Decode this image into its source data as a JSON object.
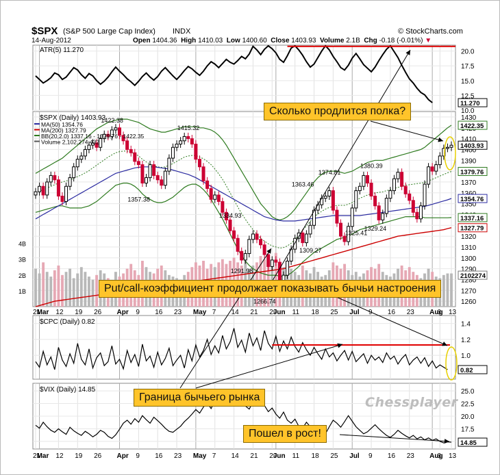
{
  "header": {
    "symbol": "$SPX",
    "name": "(S&P 500 Large Cap Index)",
    "exchange": "INDX",
    "date": "14-Aug-2012",
    "open_label": "Open",
    "open": "1404.36",
    "high_label": "High",
    "high": "1410.03",
    "low_label": "Low",
    "low": "1400.60",
    "close_label": "Close",
    "close": "1403.93",
    "volume_label": "Volume",
    "volume": "2.1B",
    "chg_label": "Chg",
    "chg": "-0.18 (-0.01%)",
    "brand": "© StockCharts.com"
  },
  "panels": {
    "atr": {
      "label": "ATR(5) 11.270",
      "last": "11.270"
    },
    "price": {
      "label": "$SPX (Daily) 1403.93",
      "legend": [
        "MA(50) 1354.76",
        "MA(200) 1327.79",
        "BB(20,2.0) 1337.16 - 1379.76 - 1422.35",
        "Volume 2,102,274,432"
      ],
      "right_tags": [
        "1422.35",
        "1403.93",
        "1379.76",
        "1354.76",
        "1337.16",
        "1327.79",
        "2102274"
      ],
      "annotations": [
        "1422.38",
        "1415.32",
        "1357.38",
        "1334.93",
        "1291.98",
        "1266.74",
        "1363.46",
        "1374.81",
        "1380.39",
        "1309.27",
        "1325.41",
        "1329.24"
      ],
      "volume_ticks": [
        "4B",
        "3B",
        "2B",
        "1B"
      ]
    },
    "cpc": {
      "label": "$CPC (Daily) 0.82",
      "last": "0.82"
    },
    "vix": {
      "label": "$VIX (Daily) 14.85",
      "last": "14.85"
    }
  },
  "x_axis": {
    "labels": [
      "21",
      "Mar",
      "12",
      "19",
      "26",
      "Apr",
      "9",
      "16",
      "23",
      "May",
      "7",
      "14",
      "21",
      "29",
      "Jun",
      "11",
      "18",
      "25",
      "Jul",
      "9",
      "16",
      "23",
      "Aug",
      "6",
      "13"
    ]
  },
  "callouts": {
    "shelf": "Сколько продлится полка?",
    "putcall": "Put/call-коэффициент продолжает показывать бычьи настроения",
    "bull": "Граница бычьего рынка",
    "rise": "Пошел в рост!"
  },
  "watermark": "Chessplayer",
  "colors": {
    "up": "#000000",
    "down": "#cc0033",
    "ma50": "#2a2aa0",
    "ma200": "#cc0000",
    "bb": "#2d7a1e",
    "volume": "#b0b0b0",
    "callout": "#ffc42a",
    "resistance": "#e00000"
  },
  "chart_data": [
    {
      "type": "line",
      "title": "ATR(5) 11.270",
      "ylim": [
        10,
        21
      ],
      "y_ticks": [
        "20.0",
        "17.5",
        "15.0",
        "12.5",
        "10.0"
      ],
      "values": [
        15.8,
        15.2,
        14.6,
        15.0,
        15.5,
        16.3,
        16.0,
        15.2,
        15.6,
        16.4,
        17.2,
        16.8,
        16.0,
        15.4,
        16.2,
        15.8,
        15.0,
        14.4,
        14.9,
        15.6,
        16.5,
        17.3,
        16.6,
        16.0,
        15.3,
        14.8,
        14.2,
        14.9,
        15.7,
        16.3,
        15.6,
        15.1,
        15.7,
        16.6,
        17.2,
        16.5,
        15.8,
        15.2,
        15.9,
        16.7,
        17.4,
        17.0,
        16.4,
        15.9,
        16.6,
        17.5,
        18.2,
        17.8,
        17.2,
        17.9,
        18.6,
        18.1,
        17.8,
        18.4,
        19.1,
        18.7,
        19.5,
        20.8,
        20.2,
        19.4,
        20.3,
        20.9,
        20.4,
        19.7,
        18.6,
        18.1,
        19.2,
        20.5,
        20.9,
        20.2,
        19.3,
        18.2,
        17.3,
        17.8,
        18.9,
        20.0,
        20.9,
        20.2,
        19.1,
        18.2,
        17.2,
        16.8,
        17.6,
        18.8,
        19.6,
        18.7,
        17.7,
        17.1,
        16.5,
        17.3,
        18.4,
        19.4,
        20.3,
        20.9,
        19.9,
        18.9,
        17.6,
        16.4,
        15.3,
        14.6,
        13.7,
        13.0,
        12.6,
        11.8,
        11.27
      ]
    },
    {
      "type": "bar",
      "subtype": "candlestick",
      "title": "$SPX (Daily) 1403.93",
      "ylim": [
        1255,
        1435
      ],
      "y_ticks": [
        "1430",
        "1420",
        "1410",
        "1400",
        "1390",
        "1380",
        "1370",
        "1360",
        "1350",
        "1340",
        "1330",
        "1320",
        "1310",
        "1300",
        "1290",
        "1280",
        "1270",
        "1260"
      ],
      "close": [
        1361,
        1366,
        1358,
        1370,
        1376,
        1372,
        1357,
        1352,
        1366,
        1374,
        1384,
        1391,
        1394,
        1400,
        1404,
        1406,
        1402,
        1410,
        1414,
        1412,
        1418,
        1420,
        1413,
        1408,
        1400,
        1397,
        1389,
        1386,
        1369,
        1374,
        1386,
        1376,
        1372,
        1367,
        1380,
        1392,
        1402,
        1405,
        1408,
        1412,
        1410,
        1405,
        1391,
        1384,
        1371,
        1364,
        1354,
        1358,
        1352,
        1342,
        1335,
        1325,
        1318,
        1306,
        1298,
        1304,
        1317,
        1322,
        1317,
        1312,
        1303,
        1292,
        1298,
        1296,
        1278,
        1284,
        1297,
        1308,
        1318,
        1323,
        1314,
        1322,
        1330,
        1344,
        1349,
        1355,
        1357,
        1362,
        1344,
        1332,
        1320,
        1315,
        1329,
        1346,
        1362,
        1366,
        1376,
        1369,
        1357,
        1348,
        1335,
        1341,
        1355,
        1362,
        1373,
        1379,
        1366,
        1359,
        1353,
        1342,
        1336,
        1348,
        1368,
        1384,
        1380,
        1386,
        1394,
        1401,
        1402,
        1403.93
      ],
      "ma50": [
        1336,
        1338,
        1340,
        1342,
        1344,
        1346,
        1348,
        1350,
        1352,
        1354,
        1356,
        1358,
        1360,
        1362,
        1364,
        1366,
        1368,
        1370,
        1372,
        1374,
        1376,
        1378,
        1379,
        1380,
        1381,
        1382,
        1383,
        1383.5,
        1384,
        1384,
        1384,
        1384,
        1383.5,
        1383,
        1382.5,
        1382,
        1381,
        1380,
        1379,
        1378,
        1377,
        1375.5,
        1374,
        1372,
        1370,
        1368,
        1366,
        1364,
        1362,
        1360,
        1358,
        1356,
        1354,
        1352,
        1350,
        1348,
        1346,
        1344,
        1342,
        1340,
        1338,
        1337,
        1336,
        1335,
        1334.5,
        1334,
        1334,
        1334,
        1334,
        1334.5,
        1335,
        1335.5,
        1336,
        1336.5,
        1337,
        1337.5,
        1338,
        1338.5,
        1339,
        1339,
        1339,
        1339,
        1339,
        1339,
        1339,
        1339,
        1339.5,
        1340,
        1340.5,
        1341,
        1341.5,
        1342,
        1342.5,
        1343,
        1343.5,
        1344,
        1344.5,
        1345,
        1345.5,
        1346,
        1346.5,
        1347,
        1347.5,
        1348.5,
        1349.5,
        1350.5,
        1351.5,
        1352.5,
        1353.5,
        1354.76
      ],
      "ma200": [
        1255,
        1256,
        1257,
        1258,
        1259,
        1260,
        1260.5,
        1261,
        1261.5,
        1262,
        1262.5,
        1263,
        1263.5,
        1264,
        1264.5,
        1265,
        1265.5,
        1266,
        1266.5,
        1267,
        1267.5,
        1268,
        1268.5,
        1269,
        1269.5,
        1270,
        1270.5,
        1271,
        1271.5,
        1272,
        1272.5,
        1273,
        1273.5,
        1274,
        1274.5,
        1275,
        1275.5,
        1276,
        1276.5,
        1277,
        1277.5,
        1278,
        1278.5,
        1279,
        1279.5,
        1280,
        1280.5,
        1281,
        1281.5,
        1282,
        1282.5,
        1283,
        1283.5,
        1284,
        1284.5,
        1285,
        1285.5,
        1286,
        1286.5,
        1287,
        1287.5,
        1288,
        1288.5,
        1289,
        1289.5,
        1290,
        1291,
        1292,
        1293,
        1294,
        1295,
        1296,
        1297,
        1298,
        1299,
        1300,
        1301,
        1302,
        1303,
        1304,
        1305,
        1306,
        1307,
        1308,
        1309,
        1310,
        1311,
        1312,
        1313,
        1314,
        1315,
        1316,
        1317,
        1318,
        1319,
        1320,
        1320.5,
        1321,
        1321.5,
        1322,
        1322.5,
        1323,
        1323.5,
        1324,
        1324.5,
        1325,
        1325.5,
        1326,
        1327,
        1327.79
      ],
      "bb_upper": [
        1378,
        1380,
        1382,
        1384,
        1386,
        1388,
        1390,
        1392,
        1395,
        1398,
        1401,
        1404,
        1407,
        1410,
        1413,
        1416,
        1419,
        1421,
        1423,
        1425,
        1426,
        1427,
        1428,
        1428,
        1428,
        1427,
        1426,
        1425,
        1423,
        1421,
        1419,
        1418,
        1417,
        1416,
        1416,
        1417,
        1418,
        1419,
        1420,
        1421,
        1421,
        1421,
        1421,
        1420,
        1420,
        1419,
        1418,
        1416,
        1413,
        1409,
        1404,
        1398,
        1392,
        1386,
        1380,
        1374,
        1368,
        1362,
        1356,
        1350,
        1346,
        1342,
        1338,
        1336,
        1335,
        1336,
        1338,
        1341,
        1345,
        1350,
        1355,
        1360,
        1365,
        1370,
        1374,
        1377,
        1379,
        1380,
        1380,
        1380,
        1379,
        1378,
        1379,
        1380,
        1382,
        1384,
        1386,
        1388,
        1389,
        1390,
        1390,
        1390,
        1391,
        1392,
        1393,
        1394,
        1395,
        1396,
        1397,
        1398,
        1399,
        1400,
        1402,
        1405,
        1408,
        1411,
        1414,
        1417,
        1420,
        1422.35
      ],
      "bb_lower": [
        1342,
        1343,
        1344,
        1345,
        1346,
        1347,
        1348,
        1348,
        1347,
        1346,
        1346,
        1346,
        1346,
        1347,
        1348,
        1350,
        1352,
        1355,
        1358,
        1361,
        1364,
        1367,
        1368,
        1369,
        1369,
        1368,
        1366,
        1363,
        1359,
        1356,
        1354,
        1352,
        1351,
        1351,
        1352,
        1354,
        1356,
        1359,
        1362,
        1365,
        1367,
        1368,
        1368,
        1366,
        1363,
        1359,
        1354,
        1348,
        1342,
        1336,
        1329,
        1322,
        1315,
        1308,
        1302,
        1297,
        1293,
        1290,
        1288,
        1286,
        1285,
        1284,
        1284,
        1284,
        1283,
        1283,
        1284,
        1286,
        1289,
        1292,
        1296,
        1299,
        1302,
        1305,
        1307,
        1309,
        1311,
        1313,
        1315,
        1317,
        1318,
        1319,
        1320,
        1322,
        1324,
        1326,
        1327,
        1328,
        1329,
        1330,
        1331,
        1332,
        1333,
        1334,
        1335,
        1336,
        1337,
        1338,
        1338,
        1338,
        1338,
        1338,
        1337,
        1337,
        1337,
        1337,
        1337,
        1337,
        1337,
        1337.16
      ],
      "volume_B": [
        2.4,
        2.1,
        2.8,
        2.2,
        1.9,
        2.3,
        2.6,
        2.0,
        2.2,
        2.4,
        1.8,
        2.1,
        2.5,
        2.2,
        1.9,
        1.7,
        2.0,
        2.3,
        2.1,
        1.8,
        1.6,
        2.2,
        1.9,
        2.1,
        2.4,
        2.7,
        2.3,
        2.0,
        2.9,
        2.5,
        2.2,
        2.1,
        2.4,
        2.6,
        2.3,
        2.0,
        1.9,
        1.8,
        1.7,
        2.0,
        2.2,
        2.5,
        2.8,
        2.6,
        2.9,
        2.4,
        2.7,
        2.5,
        2.8,
        3.0,
        2.7,
        2.9,
        3.1,
        2.8,
        2.6,
        2.9,
        2.4,
        2.6,
        2.8,
        3.2,
        3.0,
        3.3,
        2.9,
        3.4,
        2.8,
        2.5,
        2.7,
        2.4,
        2.2,
        2.0,
        2.6,
        2.3,
        2.1,
        2.5,
        2.2,
        1.9,
        2.0,
        2.3,
        2.8,
        2.6,
        2.4,
        2.7,
        2.3,
        2.0,
        2.2,
        1.9,
        2.1,
        2.3,
        2.5,
        2.4,
        2.7,
        2.2,
        2.0,
        1.9,
        2.1,
        2.4,
        2.6,
        2.3,
        2.5,
        2.2,
        2.0,
        1.8,
        2.1,
        2.4,
        2.2,
        1.9,
        1.8,
        2.0,
        2.1,
        2.1
      ]
    },
    {
      "type": "line",
      "title": "$CPC (Daily) 0.82",
      "ylim": [
        0.7,
        1.5
      ],
      "y_ticks": [
        "1.4",
        "1.2",
        "1.0",
        "0.82"
      ],
      "resistance": 1.13,
      "values": [
        0.92,
        0.85,
        1.05,
        0.88,
        0.98,
        0.82,
        1.1,
        0.94,
        0.86,
        1.02,
        0.9,
        1.15,
        0.95,
        0.88,
        1.08,
        0.84,
        0.97,
        1.03,
        0.87,
        0.92,
        1.12,
        0.89,
        0.95,
        0.83,
        1.06,
        0.91,
        1.01,
        0.86,
        1.14,
        0.93,
        0.99,
        0.85,
        1.04,
        0.88,
        0.96,
        1.09,
        0.87,
        0.94,
        1.0,
        0.84,
        1.07,
        0.93,
        1.13,
        0.98,
        1.06,
        1.2,
        1.01,
        1.12,
        1.03,
        1.25,
        1.08,
        1.17,
        1.34,
        1.1,
        1.19,
        1.04,
        1.28,
        1.12,
        1.22,
        1.06,
        1.31,
        1.15,
        1.08,
        1.24,
        1.05,
        1.18,
        1.08,
        1.23,
        1.11,
        1.04,
        1.16,
        1.07,
        1.0,
        1.1,
        1.02,
        0.95,
        1.08,
        0.98,
        1.03,
        0.93,
        1.0,
        1.06,
        0.94,
        1.05,
        0.92,
        0.97,
        1.02,
        0.9,
        1.0,
        0.94,
        0.98,
        0.91,
        1.03,
        0.95,
        0.99,
        0.89,
        0.96,
        1.01,
        0.88,
        0.94,
        0.98,
        0.9,
        0.97,
        0.86,
        0.93,
        0.84,
        0.88,
        0.85,
        0.82
      ]
    },
    {
      "type": "line",
      "title": "$VIX (Daily) 14.85",
      "ylim": [
        13.5,
        26.5
      ],
      "y_ticks": [
        "25.0",
        "22.5",
        "20.0",
        "17.5",
        "15.0"
      ],
      "values": [
        18.2,
        17.6,
        18.8,
        17.9,
        17.2,
        16.8,
        17.5,
        16.9,
        16.4,
        17.8,
        17.1,
        16.6,
        16.2,
        17.0,
        16.5,
        15.9,
        16.4,
        17.2,
        16.8,
        16.0,
        15.6,
        16.3,
        17.4,
        18.6,
        19.2,
        18.4,
        19.5,
        18.8,
        20.1,
        19.3,
        18.6,
        19.8,
        19.1,
        18.4,
        17.6,
        17.0,
        16.8,
        17.4,
        18.0,
        18.9,
        19.6,
        20.4,
        21.3,
        20.6,
        21.8,
        22.6,
        21.5,
        23.0,
        24.2,
        23.1,
        22.6,
        23.8,
        25.2,
        24.1,
        23.3,
        22.0,
        21.4,
        22.8,
        24.6,
        23.4,
        22.1,
        20.9,
        21.6,
        20.4,
        19.6,
        20.8,
        19.2,
        18.6,
        19.4,
        18.0,
        17.6,
        18.8,
        17.9,
        17.3,
        16.8,
        17.4,
        16.5,
        17.9,
        19.2,
        18.6,
        17.8,
        18.9,
        20.1,
        19.0,
        17.9,
        17.2,
        16.5,
        16.9,
        17.6,
        18.3,
        17.5,
        16.8,
        16.2,
        15.8,
        16.4,
        17.2,
        16.6,
        16.1,
        15.7,
        16.2,
        15.5,
        15.9,
        15.3,
        15.7,
        15.2,
        15.5,
        15.0,
        14.7,
        14.9,
        14.85
      ]
    }
  ]
}
